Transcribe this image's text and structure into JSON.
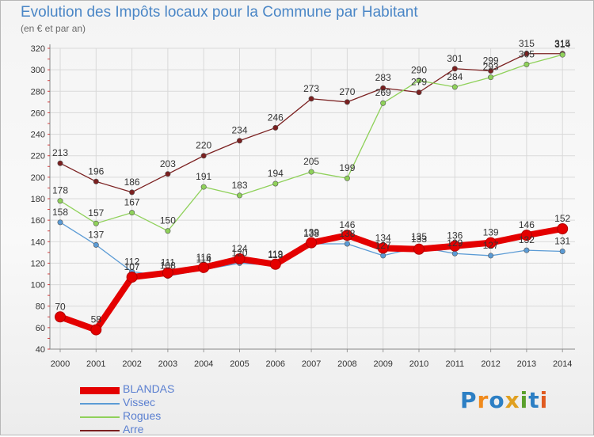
{
  "title": "Evolution des Impôts locaux pour la Commune par Habitant",
  "subtitle": "(en € et par an)",
  "logo_text": "Proxiti",
  "chart_data": {
    "type": "line",
    "categories": [
      "2000",
      "2001",
      "2002",
      "2003",
      "2004",
      "2005",
      "2006",
      "2007",
      "2008",
      "2009",
      "2010",
      "2011",
      "2012",
      "2013",
      "2014"
    ],
    "ylim": [
      40,
      320
    ],
    "yticks": [
      40,
      60,
      80,
      100,
      120,
      140,
      160,
      180,
      200,
      220,
      240,
      260,
      280,
      300,
      320
    ],
    "grid": true,
    "legend_position": "bottom-left",
    "series": [
      {
        "name": "BLANDAS",
        "color": "#e40000",
        "width": 8,
        "values": [
          70,
          58,
          107,
          111,
          116,
          124,
          119,
          139,
          146,
          134,
          133,
          136,
          139,
          146,
          152
        ]
      },
      {
        "name": "Vissec",
        "color": "#5b9bd5",
        "width": 1.3,
        "values": [
          158,
          137,
          112,
          108,
          114,
          120,
          118,
          138,
          138,
          127,
          135,
          129,
          127,
          132,
          131
        ]
      },
      {
        "name": "Rogues",
        "color": "#8fd15a",
        "width": 1.3,
        "values": [
          178,
          157,
          167,
          150,
          191,
          183,
          194,
          205,
          199,
          269,
          290,
          284,
          293,
          305,
          314
        ]
      },
      {
        "name": "Arre",
        "color": "#7b2020",
        "width": 1.3,
        "values": [
          213,
          196,
          186,
          203,
          220,
          234,
          246,
          273,
          270,
          283,
          279,
          301,
          299,
          315,
          315
        ]
      }
    ]
  }
}
